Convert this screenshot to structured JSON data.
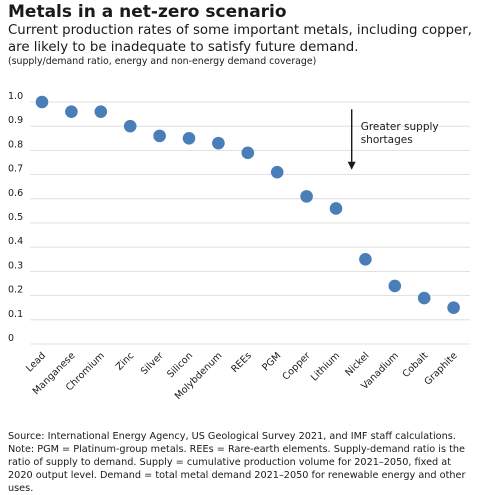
{
  "chart_data": {
    "type": "scatter",
    "title": "Metals in a net-zero scenario",
    "subtitle": "Current production rates of some important metals, including copper, are likely to be inadequate to satisfy future demand.",
    "units_note": "(supply/demand ratio, energy and non-energy demand coverage)",
    "ylim": [
      0,
      1.0
    ],
    "yticks": [
      "0",
      "0.1",
      "0.2",
      "0.3",
      "0.4",
      "0.5",
      "0.6",
      "0.7",
      "0.8",
      "0.9",
      "1.0"
    ],
    "grid": true,
    "point_color": "#4a7eb8",
    "categories": [
      "Lead",
      "Manganese",
      "Chromium",
      "Zinc",
      "Silver",
      "Silicon",
      "Molybdenum",
      "REEs",
      "PGM",
      "Copper",
      "Lithium",
      "Nickel",
      "Vanadium",
      "Cobalt",
      "Graphite"
    ],
    "values": [
      1.0,
      0.96,
      0.96,
      0.9,
      0.86,
      0.85,
      0.83,
      0.79,
      0.71,
      0.61,
      0.56,
      0.35,
      0.24,
      0.19,
      0.15
    ],
    "annotation": {
      "text_line1": "Greater supply",
      "text_line2": "shortages",
      "arrow_from": 0.97,
      "arrow_to": 0.72,
      "between_categories": [
        "Lithium",
        "Nickel"
      ]
    }
  },
  "footer": {
    "source": "Source: International Energy Agency, US Geological Survey 2021, and IMF staff calculations.",
    "note": "Note: PGM = Platinum-group metals. REEs = Rare-earth elements. Supply-demand ratio is the ratio of supply to demand. Supply = cumulative production volume for 2021–2050, fixed at 2020 output level. Demand = total metal demand 2021–2050 for renewable energy and other uses."
  }
}
